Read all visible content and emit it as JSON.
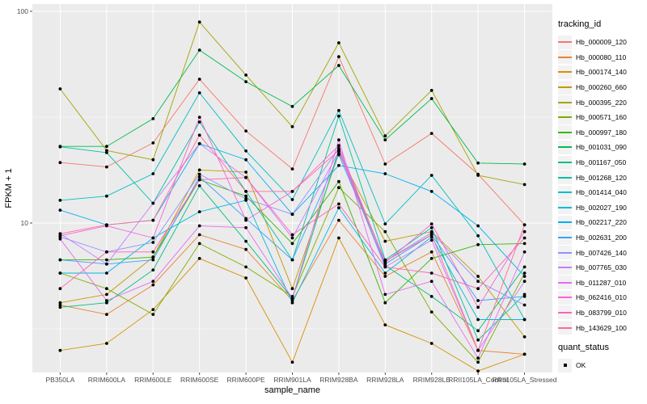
{
  "chart_data": {
    "type": "line",
    "title": "",
    "xlabel": "sample_name",
    "ylabel": "FPKM + 1",
    "y_scale": "log10",
    "ylim": [
      1.95,
      115
    ],
    "grid": true,
    "panel_bg": "#EBEBEB",
    "grid_color": "#FFFFFF",
    "point_color": "#000000",
    "y_major_ticks": [
      {
        "label": "100",
        "value": 100
      },
      {
        "label": "10",
        "value": 10
      }
    ],
    "y_minor_ticks": [
      31.62,
      3.162
    ],
    "categories": [
      "PB350LA",
      "RRIM600LA",
      "RRIM600LE",
      "RRIM600SE",
      "RRIM600PE",
      "RRIM901LA",
      "RRIM928BA",
      "RRIM928LA",
      "RRIM928LE",
      "RRII105LA_Control",
      "RRII105LA_Stressed"
    ],
    "legend": {
      "title": "tracking_id",
      "position": "right"
    },
    "quant_legend": {
      "title": "quant_status",
      "items": [
        {
          "label": "OK",
          "marker": "black-square"
        }
      ]
    },
    "series": [
      {
        "name": "Hb_000009_120",
        "color": "#F8766D",
        "values": [
          19.3,
          18.4,
          23.9,
          47.8,
          27.2,
          18.0,
          61.0,
          19.0,
          26.5,
          17.0,
          9.8
        ]
      },
      {
        "name": "Hb_000080_110",
        "color": "#EA8331",
        "values": [
          4.1,
          3.7,
          5.1,
          8.8,
          7.5,
          4.3,
          10.3,
          5.6,
          7.3,
          2.5,
          2.4
        ]
      },
      {
        "name": "Hb_000174_140",
        "color": "#D89000",
        "values": [
          2.5,
          2.7,
          3.9,
          6.8,
          5.5,
          2.2,
          8.5,
          3.3,
          2.7,
          2.0,
          2.4
        ]
      },
      {
        "name": "Hb_000260_660",
        "color": "#C09B00",
        "values": [
          4.2,
          4.6,
          6.9,
          17.8,
          17.4,
          4.9,
          21.3,
          8.2,
          9.1,
          5.6,
          2.9
        ]
      },
      {
        "name": "Hb_000395_220",
        "color": "#A3A500",
        "values": [
          43.0,
          22.0,
          19.9,
          89.0,
          50.0,
          28.5,
          71.0,
          25.8,
          42.3,
          16.8,
          15.2
        ]
      },
      {
        "name": "Hb_000571_160",
        "color": "#7CAE00",
        "values": [
          5.8,
          4.9,
          3.7,
          8.0,
          6.2,
          4.5,
          14.7,
          9.1,
          3.8,
          2.2,
          5.8
        ]
      },
      {
        "name": "Hb_000997_180",
        "color": "#39B600",
        "values": [
          6.7,
          6.7,
          6.9,
          16.0,
          13.4,
          8.0,
          15.7,
          4.2,
          6.8,
          7.9,
          8.0
        ]
      },
      {
        "name": "Hb_001031_090",
        "color": "#00BB4E",
        "values": [
          23.0,
          23.0,
          31.1,
          65.6,
          46.5,
          35.5,
          55.5,
          24.7,
          38.7,
          19.2,
          19.0
        ]
      },
      {
        "name": "Hb_001167_050",
        "color": "#00BF7D",
        "values": [
          4.0,
          4.2,
          6.0,
          15.0,
          8.2,
          4.4,
          22.2,
          6.3,
          4.5,
          3.1,
          6.2
        ]
      },
      {
        "name": "Hb_001268_120",
        "color": "#00C1A3",
        "values": [
          22.9,
          21.5,
          12.4,
          30.0,
          14.1,
          6.7,
          32.0,
          6.7,
          9.5,
          2.8,
          4.6
        ]
      },
      {
        "name": "Hb_001414_040",
        "color": "#00BFC4",
        "values": [
          12.8,
          13.4,
          17.1,
          41.2,
          21.9,
          12.9,
          34.0,
          9.9,
          16.8,
          8.7,
          3.5
        ]
      },
      {
        "name": "Hb_002027_190",
        "color": "#00BAE0",
        "values": [
          5.8,
          5.8,
          8.5,
          11.3,
          12.8,
          4.2,
          11.8,
          5.8,
          8.6,
          3.5,
          3.5
        ]
      },
      {
        "name": "Hb_002217_220",
        "color": "#00B0F6",
        "values": [
          11.5,
          9.8,
          10.3,
          23.7,
          19.9,
          11.0,
          18.7,
          17.1,
          14.1,
          9.7,
          5.6
        ]
      },
      {
        "name": "Hb_002631_200",
        "color": "#35A2FF",
        "values": [
          6.7,
          6.4,
          6.7,
          16.5,
          10.5,
          6.7,
          21.0,
          6.4,
          8.8,
          4.3,
          4.5
        ]
      },
      {
        "name": "Hb_007426_140",
        "color": "#9590FF",
        "values": [
          8.6,
          7.3,
          8.1,
          17.0,
          13.0,
          11.0,
          22.5,
          6.6,
          9.0,
          5.3,
          4.1
        ]
      },
      {
        "name": "Hb_007765_030",
        "color": "#C77CFF",
        "values": [
          8.9,
          6.4,
          12.4,
          23.7,
          16.4,
          8.5,
          21.8,
          6.2,
          8.3,
          2.5,
          5.3
        ]
      },
      {
        "name": "Hb_011287_010",
        "color": "#E76BF3",
        "values": [
          8.4,
          4.3,
          5.3,
          9.7,
          9.5,
          4.4,
          24.7,
          4.6,
          5.3,
          2.3,
          7.3
        ]
      },
      {
        "name": "Hb_062416_010",
        "color": "#FA62DB",
        "values": [
          8.7,
          9.7,
          8.5,
          31.6,
          10.3,
          14.1,
          23.2,
          6.5,
          9.9,
          4.0,
          9.1
        ]
      },
      {
        "name": "Hb_083799_010",
        "color": "#FF62BC",
        "values": [
          4.9,
          7.3,
          7.3,
          16.0,
          16.4,
          8.8,
          12.3,
          6.2,
          5.8,
          4.9,
          8.5
        ]
      },
      {
        "name": "Hb_143629_100",
        "color": "#FF6A98",
        "values": [
          8.9,
          9.8,
          10.3,
          26.0,
          14.1,
          14.1,
          22.0,
          6.6,
          8.8,
          2.5,
          9.8
        ]
      }
    ]
  }
}
